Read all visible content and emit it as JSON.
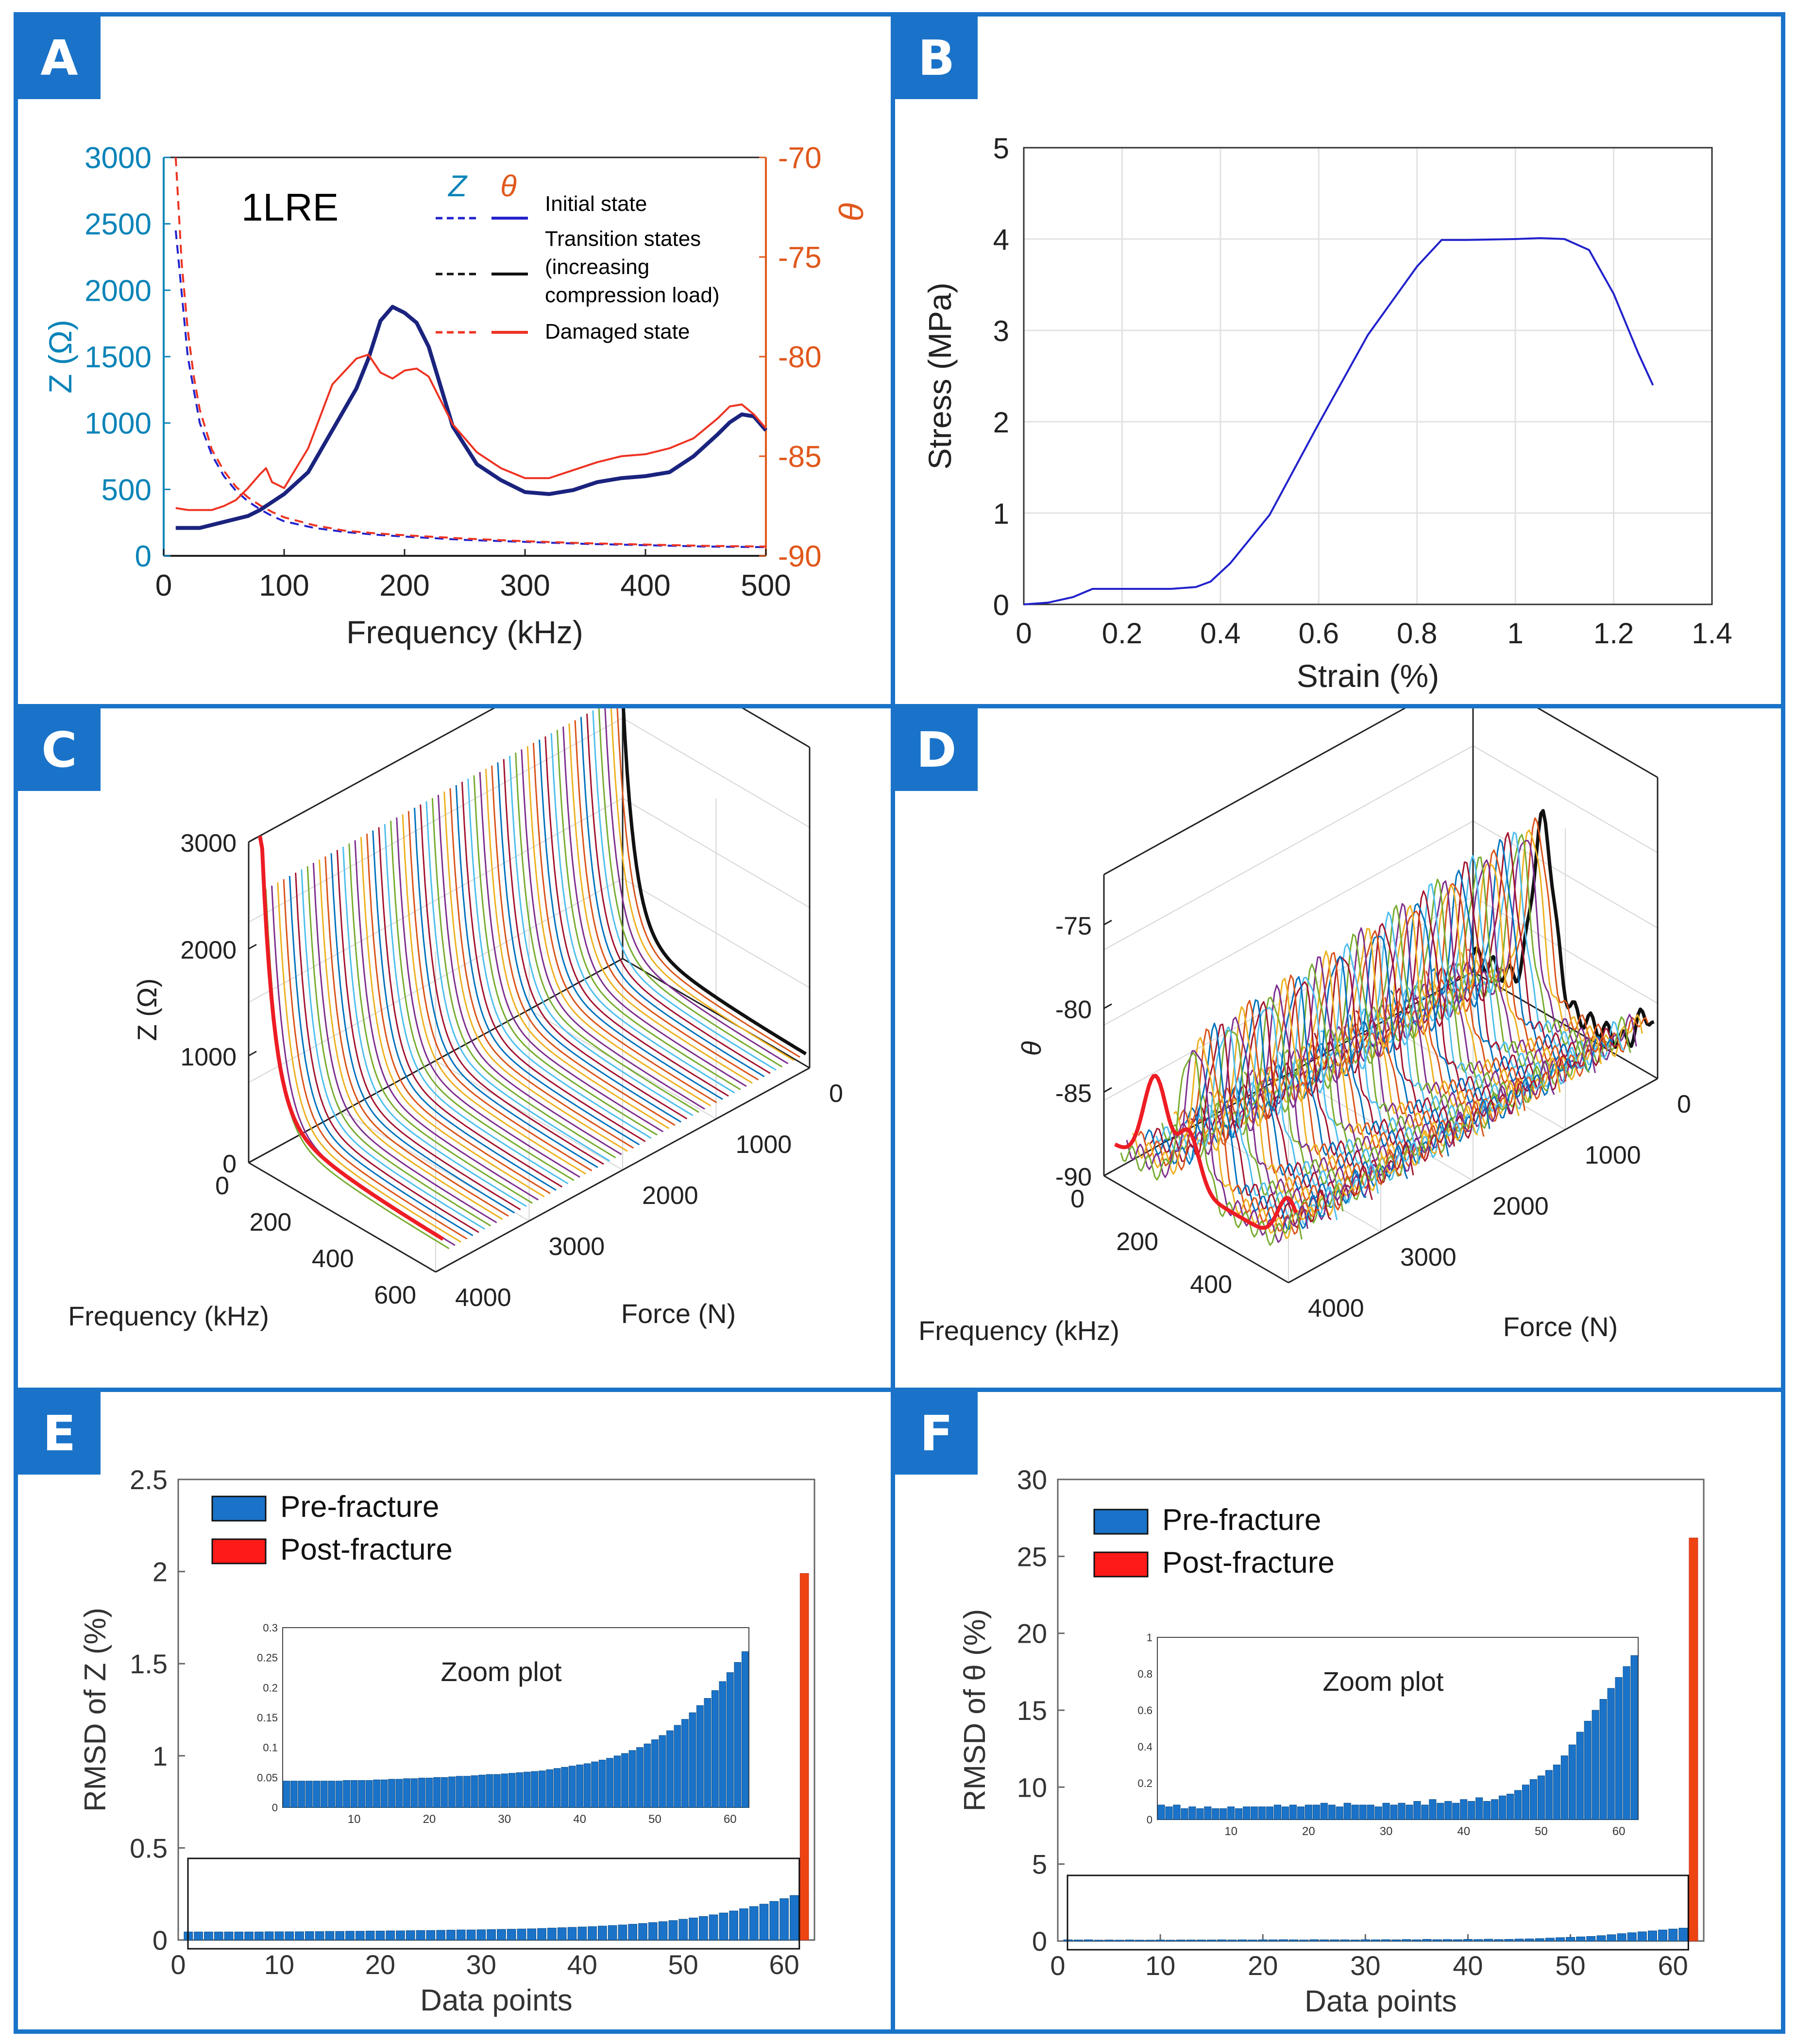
{
  "panels": {
    "A": {
      "label": "A",
      "chart_data": {
        "type": "line",
        "annotation": "1LRE",
        "xlabel": "Frequency (kHz)",
        "ylabel_left": "Z (Ω)",
        "ylabel_right": "θ",
        "xlim": [
          0,
          500
        ],
        "ylim_left": [
          0,
          3000
        ],
        "ylim_right": [
          -90,
          -70
        ],
        "x_ticks": [
          "0",
          "100",
          "200",
          "300",
          "400",
          "500"
        ],
        "y_ticks_left": [
          "0",
          "500",
          "1000",
          "1500",
          "2000",
          "2500",
          "3000"
        ],
        "y_ticks_right": [
          "-90",
          "-85",
          "-80",
          "-75",
          "-70"
        ],
        "legend_header": [
          "Z",
          "θ"
        ],
        "legend": [
          "Initial state",
          "Transition states",
          "(increasing",
          "compression load)",
          "Damaged state"
        ],
        "series": [
          {
            "name": "Z initial state (dashed blue)",
            "color": "#2222cc",
            "x": [
              10,
              20,
              30,
              40,
              50,
              60,
              70,
              80,
              90,
              100,
              125,
              150,
              175,
              200,
              250,
              300,
              350,
              400,
              450,
              500
            ],
            "y": [
              2450,
              1500,
              1000,
              760,
              600,
              490,
              410,
              350,
              300,
              260,
              210,
              180,
              160,
              145,
              120,
              105,
              90,
              80,
              70,
              65
            ]
          },
          {
            "name": "Z damaged state (dashed red)",
            "color": "#ee3322",
            "x": [
              10,
              15,
              20,
              25,
              30,
              40,
              50,
              60,
              70,
              80,
              90,
              100,
              125,
              150,
              175,
              200,
              250,
              300,
              350,
              400,
              450,
              500
            ],
            "y": [
              3000,
              2200,
              1700,
              1350,
              1100,
              800,
              640,
              520,
              440,
              380,
              330,
              290,
              230,
              190,
              170,
              155,
              130,
              110,
              95,
              85,
              75,
              70
            ]
          },
          {
            "name": "θ initial / transition (solid dark blue)",
            "color": "#1a237e",
            "x": [
              10,
              30,
              50,
              70,
              80,
              90,
              100,
              120,
              140,
              160,
              170,
              180,
              190,
              200,
              210,
              220,
              240,
              260,
              280,
              300,
              320,
              340,
              360,
              380,
              400,
              420,
              440,
              460,
              470,
              480,
              490,
              500
            ],
            "y": [
              -88.6,
              -88.6,
              -88.3,
              -88,
              -87.7,
              -87.3,
              -86.9,
              -85.8,
              -83.7,
              -81.6,
              -80.1,
              -78.2,
              -77.5,
              -77.8,
              -78.3,
              -79.5,
              -83.5,
              -85.4,
              -86.2,
              -86.8,
              -86.9,
              -86.7,
              -86.3,
              -86.1,
              -86.0,
              -85.8,
              -85,
              -83.9,
              -83.3,
              -82.9,
              -83,
              -83.7
            ]
          },
          {
            "name": "θ damaged state (solid red)",
            "color": "#ee3322",
            "x": [
              10,
              20,
              30,
              40,
              50,
              60,
              70,
              80,
              85,
              90,
              100,
              120,
              140,
              160,
              170,
              180,
              190,
              200,
              210,
              220,
              240,
              260,
              280,
              300,
              320,
              340,
              360,
              380,
              400,
              420,
              440,
              460,
              470,
              480,
              490,
              500
            ],
            "y": [
              -87.6,
              -87.7,
              -87.7,
              -87.7,
              -87.5,
              -87.2,
              -86.6,
              -85.9,
              -85.6,
              -86.3,
              -86.6,
              -84.6,
              -81.4,
              -80.1,
              -79.9,
              -80.8,
              -81.1,
              -80.7,
              -80.6,
              -81,
              -83.4,
              -84.8,
              -85.6,
              -86.1,
              -86.1,
              -85.7,
              -85.3,
              -85,
              -84.9,
              -84.6,
              -84.1,
              -83.1,
              -82.5,
              -82.4,
              -82.9,
              -83.6
            ]
          }
        ]
      }
    },
    "B": {
      "label": "B",
      "chart_data": {
        "type": "line",
        "xlabel": "Strain (%)",
        "ylabel": "Stress (MPa)",
        "xlim": [
          0,
          1.4
        ],
        "ylim": [
          0,
          5
        ],
        "x_ticks": [
          "0",
          "0.2",
          "0.4",
          "0.6",
          "0.8",
          "1",
          "1.2",
          "1.4"
        ],
        "y_ticks": [
          "0",
          "1",
          "2",
          "3",
          "4",
          "5"
        ],
        "grid": true,
        "series": [
          {
            "name": "stress-strain",
            "color": "#2222cc",
            "x": [
              0,
              0.05,
              0.1,
              0.14,
              0.2,
              0.3,
              0.35,
              0.38,
              0.42,
              0.5,
              0.6,
              0.7,
              0.8,
              0.85,
              0.9,
              1.0,
              1.05,
              1.1,
              1.15,
              1.2,
              1.25,
              1.28
            ],
            "y": [
              0,
              0.02,
              0.08,
              0.17,
              0.17,
              0.17,
              0.19,
              0.25,
              0.45,
              0.98,
              1.98,
              2.95,
              3.7,
              3.99,
              3.99,
              4.0,
              4.01,
              4.0,
              3.88,
              3.4,
              2.75,
              2.4
            ]
          }
        ]
      }
    },
    "C": {
      "label": "C",
      "chart_data": {
        "type": "line3d",
        "zlabel": "Z (Ω)",
        "xlabel": "Frequency (kHz)",
        "ylabel": "Force (N)",
        "z_ticks": [
          "0",
          "1000",
          "2000",
          "3000"
        ],
        "freq_ticks": [
          "0",
          "200",
          "400",
          "600"
        ],
        "force_ticks": [
          "0",
          "1000",
          "2000",
          "3000",
          "4000"
        ],
        "zlim": [
          0,
          3000
        ],
        "freq_range": [
          0,
          600
        ],
        "force_range": [
          0,
          4000
        ],
        "curve_count": 62,
        "palette": [
          "#0072bd",
          "#d95319",
          "#edb120",
          "#7e2f8e",
          "#77ac30",
          "#4dbeee",
          "#a2142f"
        ],
        "first_curve_color": "#111111",
        "damaged_curve_color": "#ee1c24"
      }
    },
    "D": {
      "label": "D",
      "chart_data": {
        "type": "line3d",
        "zlabel": "θ",
        "xlabel": "Frequency (kHz)",
        "ylabel": "Force (N)",
        "z_ticks": [
          "-90",
          "-85",
          "-80",
          "-75"
        ],
        "freq_ticks": [
          "0",
          "200",
          "400"
        ],
        "force_ticks": [
          "0",
          "1000",
          "2000",
          "3000",
          "4000"
        ],
        "zlim": [
          -90,
          -72
        ],
        "freq_range": [
          0,
          500
        ],
        "force_range": [
          0,
          4000
        ],
        "curve_count": 62,
        "palette": [
          "#0072bd",
          "#d95319",
          "#edb120",
          "#7e2f8e",
          "#77ac30",
          "#4dbeee",
          "#a2142f"
        ],
        "first_curve_color": "#111111",
        "damaged_curve_color": "#ee1c24"
      }
    },
    "E": {
      "label": "E",
      "chart_data": {
        "type": "bar",
        "xlabel": "Data points",
        "ylabel": "RMSD of Z (%)",
        "xlim": [
          0,
          63
        ],
        "ylim": [
          0,
          2.5
        ],
        "x_ticks": [
          "0",
          "10",
          "20",
          "30",
          "40",
          "50",
          "60"
        ],
        "y_ticks": [
          "0",
          "0.5",
          "1",
          "1.5",
          "2",
          "2.5"
        ],
        "legend": [
          "Pre-fracture",
          "Post-fracture"
        ],
        "colors": {
          "pre": "#1a73c8",
          "post": "#ee4411",
          "post_border": "#c0392b"
        },
        "pre_fracture_values": [
          0.044,
          0.044,
          0.044,
          0.044,
          0.044,
          0.044,
          0.044,
          0.044,
          0.045,
          0.045,
          0.045,
          0.045,
          0.046,
          0.046,
          0.047,
          0.047,
          0.048,
          0.048,
          0.049,
          0.049,
          0.05,
          0.05,
          0.051,
          0.052,
          0.052,
          0.053,
          0.054,
          0.055,
          0.055,
          0.056,
          0.057,
          0.058,
          0.059,
          0.06,
          0.061,
          0.063,
          0.065,
          0.067,
          0.069,
          0.071,
          0.073,
          0.076,
          0.079,
          0.082,
          0.086,
          0.09,
          0.095,
          0.1,
          0.106,
          0.113,
          0.12,
          0.128,
          0.137,
          0.147,
          0.158,
          0.17,
          0.182,
          0.195,
          0.21,
          0.225,
          0.242,
          0.26
        ],
        "post_fracture_index": 62,
        "post_fracture_value": 1.99,
        "inset": {
          "title": "Zoom plot",
          "ylim": [
            0,
            0.3
          ],
          "y_ticks": [
            "0",
            "0.05",
            "0.1",
            "0.15",
            "0.2",
            "0.25",
            "0.3"
          ],
          "x_ticks": [
            "10",
            "20",
            "30",
            "40",
            "50",
            "60"
          ]
        }
      }
    },
    "F": {
      "label": "F",
      "chart_data": {
        "type": "bar",
        "xlabel": "Data points",
        "ylabel": "RMSD of θ (%)",
        "xlim": [
          0,
          63
        ],
        "ylim": [
          0,
          30
        ],
        "x_ticks": [
          "0",
          "10",
          "20",
          "30",
          "40",
          "50",
          "60"
        ],
        "y_ticks": [
          "0",
          "5",
          "10",
          "15",
          "20",
          "25",
          "30"
        ],
        "legend": [
          "Pre-fracture",
          "Post-fracture"
        ],
        "colors": {
          "pre": "#1a73c8",
          "post": "#ee4411",
          "post_border": "#c0392b"
        },
        "pre_fracture_values": [
          0.08,
          0.07,
          0.08,
          0.06,
          0.07,
          0.06,
          0.07,
          0.06,
          0.06,
          0.07,
          0.06,
          0.07,
          0.07,
          0.07,
          0.07,
          0.08,
          0.07,
          0.08,
          0.07,
          0.08,
          0.08,
          0.09,
          0.08,
          0.07,
          0.09,
          0.08,
          0.08,
          0.08,
          0.07,
          0.09,
          0.08,
          0.09,
          0.08,
          0.1,
          0.08,
          0.11,
          0.09,
          0.1,
          0.09,
          0.11,
          0.1,
          0.12,
          0.1,
          0.11,
          0.13,
          0.14,
          0.16,
          0.19,
          0.22,
          0.24,
          0.27,
          0.3,
          0.35,
          0.41,
          0.48,
          0.54,
          0.6,
          0.66,
          0.72,
          0.78,
          0.84,
          0.9
        ],
        "post_fracture_index": 62,
        "post_fracture_value": 26.2,
        "inset": {
          "title": "Zoom plot",
          "ylim": [
            0,
            1
          ],
          "y_ticks": [
            "0",
            "0.2",
            "0.4",
            "0.6",
            "0.8",
            "1"
          ],
          "x_ticks": [
            "10",
            "20",
            "30",
            "40",
            "50",
            "60"
          ]
        }
      }
    }
  }
}
